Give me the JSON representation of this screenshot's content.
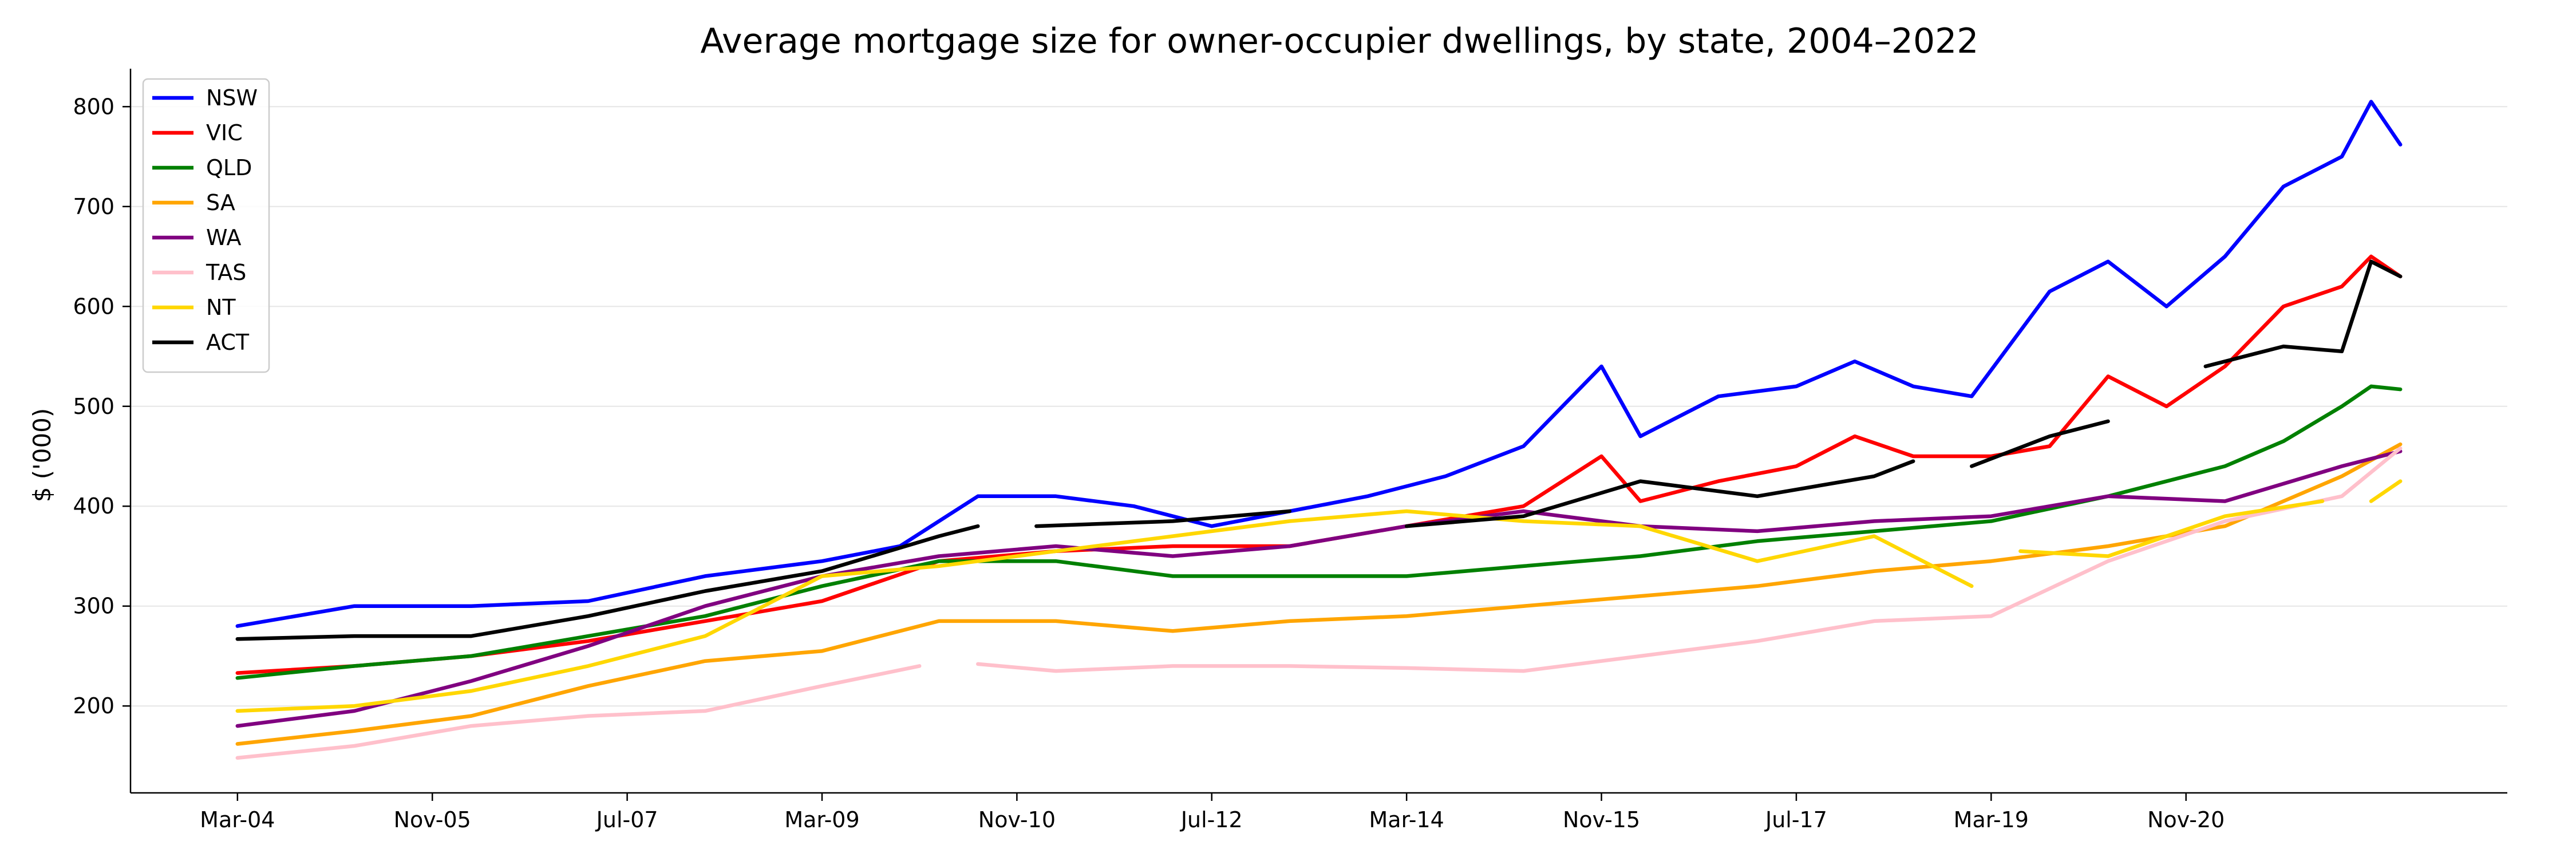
{
  "chart_data": {
    "type": "line",
    "title": "Average mortgage size for owner-occupier dwellings, by state, 2004–2022",
    "xlabel": "",
    "ylabel": "$ ('000)",
    "x_start": "Mar-04",
    "x_end": "Sep-22",
    "x_frequency": "monthly",
    "xticks": [
      "Mar-04",
      "Nov-05",
      "Jul-07",
      "Mar-09",
      "Nov-10",
      "Jul-12",
      "Mar-14",
      "Nov-15",
      "Jul-17",
      "Mar-19",
      "Nov-20"
    ],
    "yticks": [
      200,
      300,
      400,
      500,
      600,
      700,
      800
    ],
    "ylim": [
      113,
      838
    ],
    "grid": "horizontal",
    "legend_position": "top-left",
    "series": [
      {
        "name": "NSW",
        "color": "#0000ff",
        "points": [
          [
            "Mar-04",
            280
          ],
          [
            "Mar-05",
            300
          ],
          [
            "Mar-06",
            300
          ],
          [
            "Mar-07",
            305
          ],
          [
            "Mar-08",
            330
          ],
          [
            "Mar-09",
            345
          ],
          [
            "Nov-09",
            360
          ],
          [
            "Jul-10",
            410
          ],
          [
            "Mar-11",
            410
          ],
          [
            "Nov-11",
            400
          ],
          [
            "Jul-12",
            380
          ],
          [
            "Mar-13",
            395
          ],
          [
            "Nov-13",
            410
          ],
          [
            "Jul-14",
            430
          ],
          [
            "Mar-15",
            460
          ],
          [
            "Nov-15",
            540
          ],
          [
            "Mar-16",
            470
          ],
          [
            "Nov-16",
            510
          ],
          [
            "Jul-17",
            520
          ],
          [
            "Jan-18",
            545
          ],
          [
            "Jul-18",
            520
          ],
          [
            "Jan-19",
            510
          ],
          [
            "Sep-19",
            615
          ],
          [
            "Mar-20",
            645
          ],
          [
            "Sep-20",
            600
          ],
          [
            "Mar-21",
            650
          ],
          [
            "Sep-21",
            720
          ],
          [
            "Mar-22",
            750
          ],
          [
            "Jun-22",
            805
          ],
          [
            "Sep-22",
            762
          ]
        ]
      },
      {
        "name": "VIC",
        "color": "#ff0000",
        "points": [
          [
            "Mar-04",
            233
          ],
          [
            "Mar-05",
            240
          ],
          [
            "Mar-06",
            250
          ],
          [
            "Mar-07",
            265
          ],
          [
            "Mar-08",
            285
          ],
          [
            "Mar-09",
            305
          ],
          [
            "Mar-10",
            345
          ],
          [
            "Mar-11",
            355
          ],
          [
            "Mar-12",
            360
          ],
          [
            "Mar-13",
            360
          ],
          [
            "Mar-14",
            380
          ],
          [
            "Mar-15",
            400
          ],
          [
            "Nov-15",
            450
          ],
          [
            "Mar-16",
            405
          ],
          [
            "Nov-16",
            425
          ],
          [
            "Jul-17",
            440
          ],
          [
            "Jan-18",
            470
          ],
          [
            "Jul-18",
            450
          ],
          [
            "Mar-19",
            450
          ],
          [
            "Sep-19",
            460
          ],
          [
            "Mar-20",
            530
          ],
          [
            "Sep-20",
            500
          ],
          [
            "Mar-21",
            540
          ],
          [
            "Sep-21",
            600
          ],
          [
            "Mar-22",
            620
          ],
          [
            "Jun-22",
            650
          ],
          [
            "Sep-22",
            630
          ]
        ]
      },
      {
        "name": "QLD",
        "color": "#008000",
        "points": [
          [
            "Mar-04",
            228
          ],
          [
            "Mar-05",
            240
          ],
          [
            "Mar-06",
            250
          ],
          [
            "Mar-07",
            270
          ],
          [
            "Mar-08",
            290
          ],
          [
            "Mar-09",
            320
          ],
          [
            "Mar-10",
            345
          ],
          [
            "Mar-11",
            345
          ],
          [
            "Mar-12",
            330
          ],
          [
            "Mar-13",
            330
          ],
          [
            "Mar-14",
            330
          ],
          [
            "Mar-15",
            340
          ],
          [
            "Mar-16",
            350
          ],
          [
            "Mar-17",
            365
          ],
          [
            "Mar-18",
            375
          ],
          [
            "Mar-19",
            385
          ],
          [
            "Mar-20",
            410
          ],
          [
            "Mar-21",
            440
          ],
          [
            "Sep-21",
            465
          ],
          [
            "Mar-22",
            500
          ],
          [
            "Jun-22",
            520
          ],
          [
            "Sep-22",
            517
          ]
        ]
      },
      {
        "name": "SA",
        "color": "#ffa500",
        "points": [
          [
            "Mar-04",
            162
          ],
          [
            "Mar-05",
            175
          ],
          [
            "Mar-06",
            190
          ],
          [
            "Mar-07",
            220
          ],
          [
            "Mar-08",
            245
          ],
          [
            "Mar-09",
            255
          ],
          [
            "Mar-10",
            285
          ],
          [
            "Mar-11",
            285
          ],
          [
            "Mar-12",
            275
          ],
          [
            "Mar-13",
            285
          ],
          [
            "Mar-14",
            290
          ],
          [
            "Mar-15",
            300
          ],
          [
            "Mar-16",
            310
          ],
          [
            "Mar-17",
            320
          ],
          [
            "Mar-18",
            335
          ],
          [
            "Mar-19",
            345
          ],
          [
            "Mar-20",
            360
          ],
          [
            "Mar-21",
            380
          ],
          [
            "Mar-22",
            430
          ],
          [
            "Sep-22",
            462
          ]
        ]
      },
      {
        "name": "WA",
        "color": "#800080",
        "points": [
          [
            "Mar-04",
            180
          ],
          [
            "Mar-05",
            195
          ],
          [
            "Mar-06",
            225
          ],
          [
            "Mar-07",
            260
          ],
          [
            "Mar-08",
            300
          ],
          [
            "Mar-09",
            330
          ],
          [
            "Mar-10",
            350
          ],
          [
            "Mar-11",
            360
          ],
          [
            "Mar-12",
            350
          ],
          [
            "Mar-13",
            360
          ],
          [
            "Mar-14",
            380
          ],
          [
            "Mar-15",
            395
          ],
          [
            "Mar-16",
            380
          ],
          [
            "Mar-17",
            375
          ],
          [
            "Mar-18",
            385
          ],
          [
            "Mar-19",
            390
          ],
          [
            "Mar-20",
            410
          ],
          [
            "Mar-21",
            405
          ],
          [
            "Mar-22",
            440
          ],
          [
            "Sep-22",
            455
          ]
        ]
      },
      {
        "name": "TAS",
        "color": "#ffc0cb",
        "points": [
          [
            "Mar-04",
            148
          ],
          [
            "Mar-05",
            160
          ],
          [
            "Mar-06",
            180
          ],
          [
            "Mar-07",
            190
          ],
          [
            "Mar-08",
            195
          ],
          [
            "Mar-09",
            220
          ],
          [
            "Jan-10",
            240
          ],
          null,
          [
            "Jul-10",
            242
          ],
          [
            "Mar-11",
            235
          ],
          [
            "Mar-12",
            240
          ],
          [
            "Mar-13",
            240
          ],
          [
            "Mar-14",
            238
          ],
          [
            "Mar-15",
            235
          ],
          [
            "Mar-16",
            250
          ],
          [
            "Mar-17",
            265
          ],
          [
            "Mar-18",
            285
          ],
          [
            "Mar-19",
            290
          ],
          [
            "Mar-20",
            345
          ],
          [
            "Mar-21",
            385
          ],
          [
            "Mar-22",
            410
          ],
          [
            "Sep-22",
            458
          ]
        ]
      },
      {
        "name": "NT",
        "color": "#ffd700",
        "points": [
          [
            "Mar-04",
            195
          ],
          [
            "Mar-05",
            200
          ],
          [
            "Mar-06",
            215
          ],
          [
            "Mar-07",
            240
          ],
          [
            "Mar-08",
            270
          ],
          [
            "Mar-09",
            330
          ],
          [
            "Mar-10",
            340
          ],
          [
            "Mar-11",
            355
          ],
          [
            "Mar-12",
            370
          ],
          [
            "Mar-13",
            385
          ],
          [
            "Mar-14",
            395
          ],
          [
            "Mar-15",
            385
          ],
          [
            "Mar-16",
            380
          ],
          [
            "Mar-17",
            345
          ],
          [
            "Mar-18",
            370
          ],
          [
            "Jan-19",
            320
          ],
          null,
          [
            "Jun-19",
            355
          ],
          [
            "Mar-20",
            350
          ],
          [
            "Mar-21",
            390
          ],
          [
            "Jan-22",
            405
          ],
          null,
          [
            "Jun-22",
            405
          ],
          [
            "Sep-22",
            425
          ]
        ]
      },
      {
        "name": "ACT",
        "color": "#000000",
        "points": [
          [
            "Mar-04",
            267
          ],
          [
            "Mar-05",
            270
          ],
          [
            "Mar-06",
            270
          ],
          [
            "Mar-07",
            290
          ],
          [
            "Mar-08",
            315
          ],
          [
            "Mar-09",
            335
          ],
          [
            "Mar-10",
            370
          ],
          [
            "Jul-10",
            380
          ],
          null,
          [
            "Jan-11",
            380
          ],
          [
            "Mar-12",
            385
          ],
          [
            "Mar-13",
            395
          ],
          null,
          [
            "Mar-14",
            380
          ],
          [
            "Mar-15",
            390
          ],
          [
            "Mar-16",
            425
          ],
          [
            "Mar-17",
            410
          ],
          [
            "Mar-18",
            430
          ],
          [
            "Jul-18",
            445
          ],
          null,
          [
            "Jan-19",
            440
          ],
          [
            "Sep-19",
            470
          ],
          [
            "Mar-20",
            485
          ],
          null,
          [
            "Jan-21",
            540
          ],
          [
            "Sep-21",
            560
          ],
          [
            "Mar-22",
            555
          ],
          [
            "Jun-22",
            645
          ],
          [
            "Sep-22",
            630
          ]
        ]
      }
    ]
  }
}
